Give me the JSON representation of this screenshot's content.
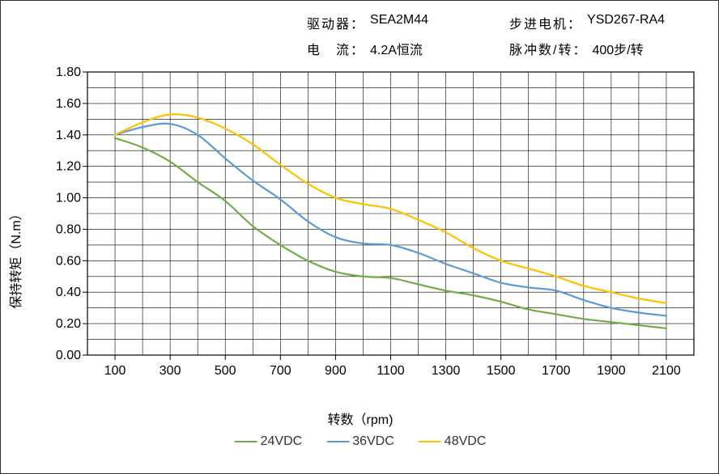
{
  "meta": {
    "driver_label": "驱动器：",
    "driver_value": "SEA2M44",
    "motor_label": "步进电机：",
    "motor_value": "YSD267-RA4",
    "current_label": "电　流：",
    "current_value": "4.2A恒流",
    "pulse_label": "脉冲数/转：",
    "pulse_value": "400步/转"
  },
  "chart": {
    "type": "line",
    "x_label": "转数（rpm)",
    "y_label": "保持转矩（N.m）",
    "xlim": [
      0,
      2200
    ],
    "ylim": [
      0.0,
      1.8
    ],
    "x_ticks": [
      100,
      300,
      500,
      700,
      900,
      1100,
      1300,
      1500,
      1700,
      1900,
      2100
    ],
    "y_ticks": [
      0.0,
      0.2,
      0.4,
      0.6,
      0.8,
      1.0,
      1.2,
      1.4,
      1.6,
      1.8
    ],
    "grid_color": "#000000",
    "grid_width": 0.6,
    "background_color": "#ffffff",
    "line_width": 2.2,
    "tick_fontsize": 16,
    "label_fontsize": 16,
    "series": [
      {
        "name": "24VDC",
        "color": "#70ad47",
        "points": [
          [
            100,
            1.38
          ],
          [
            200,
            1.32
          ],
          [
            300,
            1.23
          ],
          [
            400,
            1.1
          ],
          [
            500,
            0.98
          ],
          [
            600,
            0.82
          ],
          [
            700,
            0.7
          ],
          [
            800,
            0.6
          ],
          [
            900,
            0.53
          ],
          [
            1000,
            0.5
          ],
          [
            1100,
            0.49
          ],
          [
            1200,
            0.45
          ],
          [
            1300,
            0.41
          ],
          [
            1400,
            0.38
          ],
          [
            1500,
            0.34
          ],
          [
            1600,
            0.29
          ],
          [
            1700,
            0.26
          ],
          [
            1800,
            0.23
          ],
          [
            1900,
            0.21
          ],
          [
            2000,
            0.19
          ],
          [
            2100,
            0.17
          ]
        ]
      },
      {
        "name": "36VDC",
        "color": "#5b9bd5",
        "points": [
          [
            100,
            1.4
          ],
          [
            200,
            1.45
          ],
          [
            300,
            1.47
          ],
          [
            400,
            1.4
          ],
          [
            500,
            1.25
          ],
          [
            600,
            1.11
          ],
          [
            700,
            0.99
          ],
          [
            800,
            0.85
          ],
          [
            900,
            0.75
          ],
          [
            1000,
            0.71
          ],
          [
            1100,
            0.7
          ],
          [
            1200,
            0.65
          ],
          [
            1300,
            0.58
          ],
          [
            1400,
            0.52
          ],
          [
            1500,
            0.46
          ],
          [
            1600,
            0.43
          ],
          [
            1700,
            0.41
          ],
          [
            1800,
            0.35
          ],
          [
            1900,
            0.3
          ],
          [
            2000,
            0.27
          ],
          [
            2100,
            0.25
          ]
        ]
      },
      {
        "name": "48VDC",
        "color": "#ffc000",
        "points": [
          [
            100,
            1.4
          ],
          [
            200,
            1.48
          ],
          [
            300,
            1.53
          ],
          [
            400,
            1.51
          ],
          [
            500,
            1.44
          ],
          [
            600,
            1.34
          ],
          [
            700,
            1.21
          ],
          [
            800,
            1.09
          ],
          [
            900,
            1.0
          ],
          [
            1000,
            0.96
          ],
          [
            1100,
            0.93
          ],
          [
            1200,
            0.86
          ],
          [
            1300,
            0.78
          ],
          [
            1400,
            0.68
          ],
          [
            1500,
            0.6
          ],
          [
            1600,
            0.55
          ],
          [
            1700,
            0.5
          ],
          [
            1800,
            0.44
          ],
          [
            1900,
            0.4
          ],
          [
            2000,
            0.36
          ],
          [
            2100,
            0.33
          ]
        ]
      }
    ]
  }
}
